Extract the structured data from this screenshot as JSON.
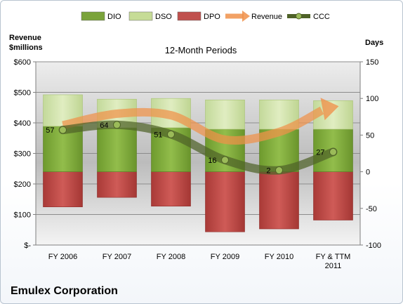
{
  "chart_data": {
    "type": "bar",
    "title": "12-Month Periods",
    "company": "Emulex Corporation",
    "left_axis_label": [
      "Revenue",
      "$millions"
    ],
    "right_axis_label": "Days",
    "categories": [
      "FY 2006",
      "FY 2007",
      "FY 2008",
      "FY 2009",
      "FY 2010",
      "FY & TTM 2011"
    ],
    "left_axis": {
      "min": 0,
      "max": 600,
      "step": 100,
      "tick_labels": [
        "$-",
        "$100",
        "$200",
        "$300",
        "$400",
        "$500",
        "$600"
      ]
    },
    "right_axis": {
      "min": -100,
      "max": 150,
      "step": 50,
      "tick_labels": [
        "-100",
        "-50",
        "0",
        "50",
        "100",
        "150"
      ]
    },
    "grid": "horizontal major gridlines",
    "legend_position": "top",
    "series": [
      {
        "name": "DIO",
        "kind": "stacked-bar",
        "axis": "right",
        "values": [
          62,
          60,
          60,
          58,
          58,
          58
        ],
        "color": "#7aa33a"
      },
      {
        "name": "DSO",
        "kind": "stacked-bar",
        "axis": "right",
        "values": [
          43,
          39,
          40,
          40,
          40,
          39
        ],
        "color": "#c6dc96"
      },
      {
        "name": "DPO",
        "kind": "stacked-bar",
        "axis": "right",
        "values": [
          -48,
          -35,
          -47,
          -82,
          -78,
          -66
        ],
        "color": "#c0504d"
      },
      {
        "name": "Revenue",
        "kind": "line",
        "axis": "left",
        "values": [
          392,
          430,
          425,
          345,
          370,
          450
        ],
        "color": "#f0914a"
      },
      {
        "name": "CCC",
        "kind": "line",
        "axis": "right",
        "values": [
          57,
          64,
          51,
          16,
          2,
          27
        ],
        "color": "#4f6228",
        "data_labels": [
          "57",
          "64",
          "51",
          "16",
          "2",
          "27"
        ]
      }
    ]
  }
}
